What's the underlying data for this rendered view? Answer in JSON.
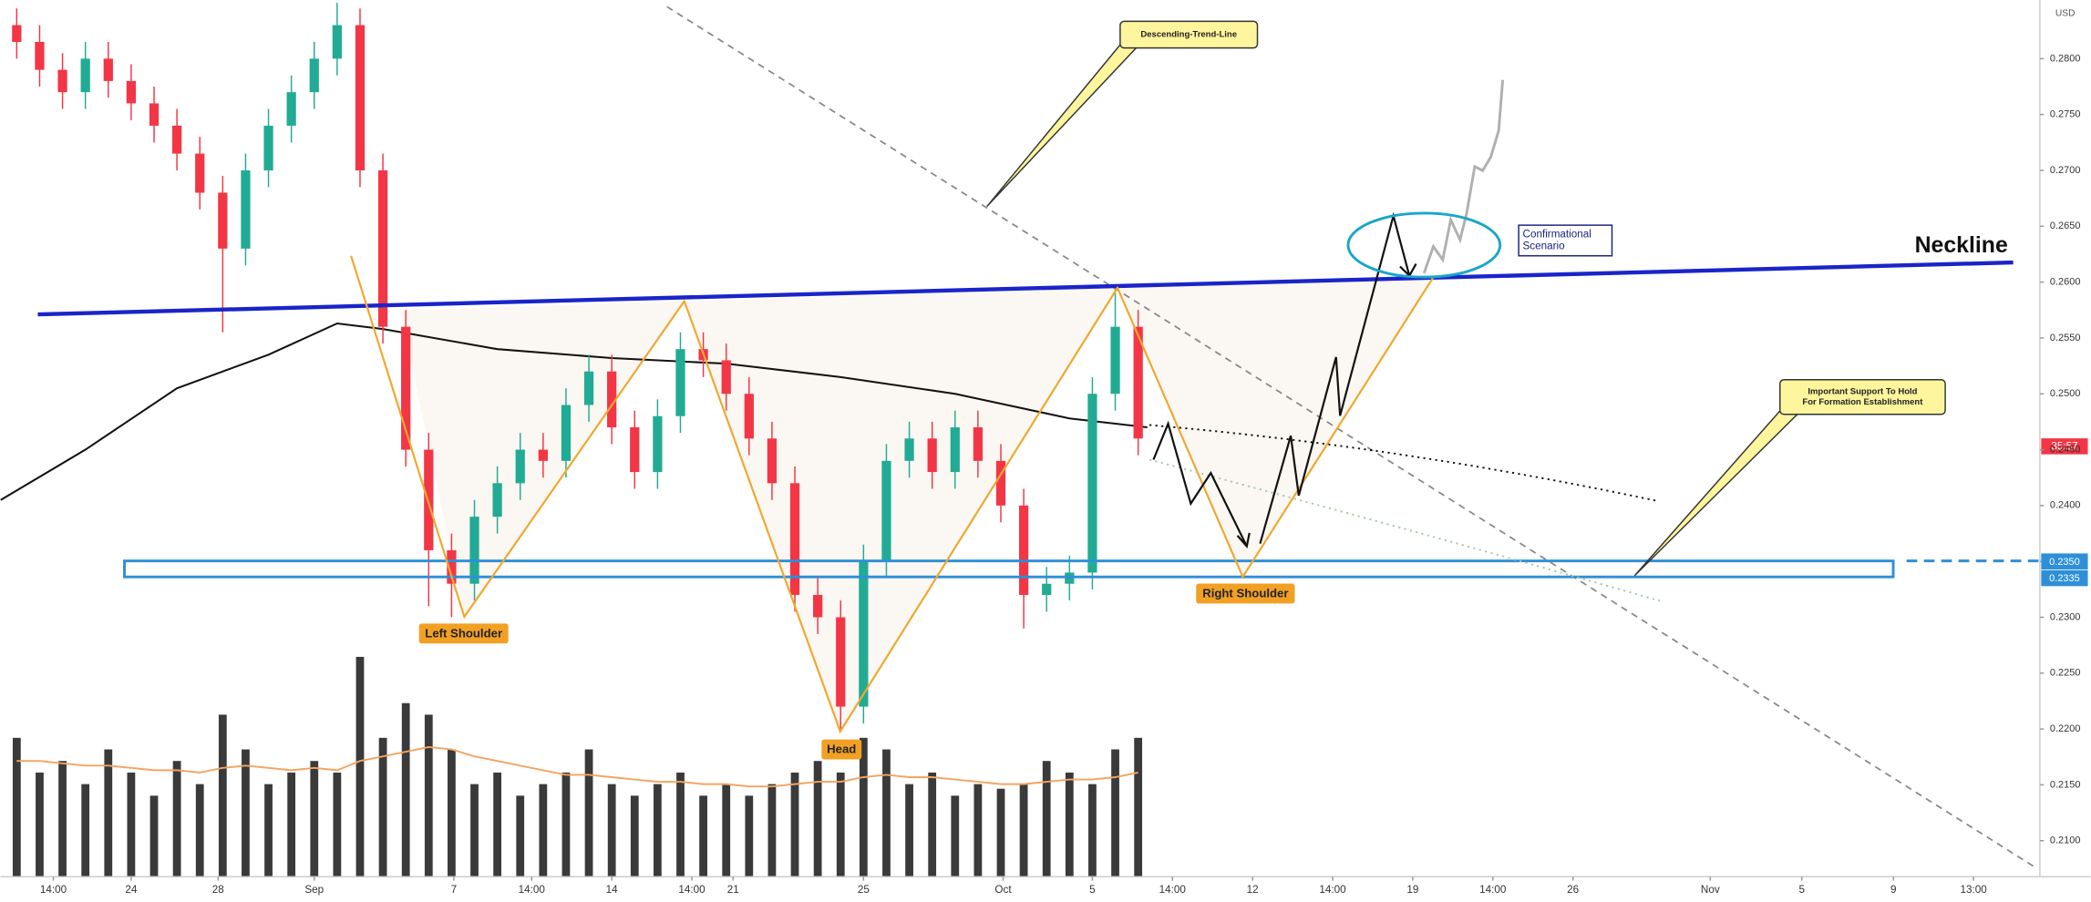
{
  "chart_data": {
    "type": "candlestick",
    "x": [
      19,
      20,
      21,
      22,
      23,
      24,
      25,
      26,
      27,
      28,
      29,
      30,
      31,
      32,
      33,
      34,
      35,
      36,
      37,
      38,
      39,
      40,
      41,
      42,
      43,
      44,
      45,
      46,
      47,
      48,
      49,
      50,
      51,
      52,
      53,
      54,
      55,
      56,
      57,
      58,
      59,
      60,
      61,
      62,
      63,
      64,
      65,
      66,
      67,
      68
    ],
    "open": [
      0.283,
      0.2815,
      0.279,
      0.277,
      0.28,
      0.278,
      0.276,
      0.274,
      0.2715,
      0.268,
      0.263,
      0.27,
      0.274,
      0.277,
      0.28,
      0.283,
      0.27,
      0.256,
      0.245,
      0.236,
      0.233,
      0.239,
      0.242,
      0.245,
      0.244,
      0.249,
      0.252,
      0.247,
      0.243,
      0.248,
      0.254,
      0.253,
      0.25,
      0.246,
      0.242,
      0.232,
      0.23,
      0.222,
      0.235,
      0.244,
      0.246,
      0.243,
      0.247,
      0.244,
      0.24,
      0.232,
      0.233,
      0.234,
      0.25,
      0.256
    ],
    "high": [
      0.2845,
      0.283,
      0.2805,
      0.2815,
      0.2815,
      0.2795,
      0.2775,
      0.2755,
      0.273,
      0.2695,
      0.2715,
      0.2755,
      0.2785,
      0.2815,
      0.285,
      0.2845,
      0.2715,
      0.2575,
      0.2465,
      0.2375,
      0.2405,
      0.2435,
      0.2465,
      0.2465,
      0.2505,
      0.2535,
      0.2535,
      0.2485,
      0.2495,
      0.2555,
      0.2555,
      0.2545,
      0.2515,
      0.2475,
      0.2435,
      0.2335,
      0.2315,
      0.2365,
      0.2455,
      0.2475,
      0.2475,
      0.2485,
      0.2485,
      0.2455,
      0.2415,
      0.2345,
      0.2355,
      0.2515,
      0.2595,
      0.2575
    ],
    "low": [
      0.28,
      0.2775,
      0.2755,
      0.2755,
      0.2765,
      0.2745,
      0.2725,
      0.27,
      0.2665,
      0.2555,
      0.2615,
      0.2685,
      0.2725,
      0.2755,
      0.2785,
      0.2685,
      0.2545,
      0.2435,
      0.231,
      0.23,
      0.2315,
      0.2375,
      0.2405,
      0.2425,
      0.2425,
      0.2475,
      0.2455,
      0.2415,
      0.2415,
      0.2465,
      0.2515,
      0.2485,
      0.2445,
      0.2405,
      0.2305,
      0.2285,
      0.22,
      0.2205,
      0.2335,
      0.2425,
      0.2415,
      0.2415,
      0.2425,
      0.2385,
      0.229,
      0.2305,
      0.2315,
      0.2325,
      0.2485,
      0.2445
    ],
    "close": [
      0.2815,
      0.279,
      0.277,
      0.28,
      0.278,
      0.276,
      0.274,
      0.2715,
      0.268,
      0.263,
      0.27,
      0.274,
      0.277,
      0.28,
      0.283,
      0.27,
      0.256,
      0.245,
      0.236,
      0.233,
      0.239,
      0.242,
      0.245,
      0.244,
      0.249,
      0.252,
      0.247,
      0.243,
      0.248,
      0.254,
      0.253,
      0.25,
      0.246,
      0.242,
      0.232,
      0.23,
      0.222,
      0.235,
      0.244,
      0.246,
      0.243,
      0.247,
      0.244,
      0.24,
      0.232,
      0.233,
      0.234,
      0.25,
      0.256,
      0.246
    ],
    "up_color": "#22ab94",
    "down_color": "#f23645",
    "volume": {
      "values": [
        60,
        45,
        50,
        40,
        55,
        45,
        35,
        50,
        40,
        70,
        55,
        40,
        45,
        50,
        45,
        95,
        60,
        75,
        70,
        55,
        40,
        45,
        35,
        40,
        45,
        55,
        40,
        35,
        40,
        45,
        35,
        40,
        35,
        40,
        45,
        50,
        45,
        60,
        55,
        40,
        45,
        35,
        40,
        38,
        40,
        50,
        45,
        40,
        55,
        60
      ],
      "color": "#3a3a3a",
      "ma": {
        "values": [
          50,
          50,
          49,
          48,
          48,
          47,
          46,
          46,
          45,
          47,
          48,
          47,
          46,
          47,
          46,
          50,
          52,
          54,
          56,
          55,
          52,
          50,
          48,
          46,
          44,
          44,
          43,
          42,
          41,
          41,
          40,
          40,
          39,
          39,
          40,
          41,
          41,
          43,
          44,
          43,
          43,
          42,
          41,
          40,
          40,
          41,
          42,
          42,
          43,
          45
        ],
        "color": "#f4a460"
      }
    },
    "ma": {
      "x": [
        18.3,
        22,
        26,
        30,
        33,
        35,
        40,
        45,
        50,
        55,
        60,
        65,
        68.4
      ],
      "values": [
        0.2405,
        0.245,
        0.2505,
        0.2535,
        0.2563,
        0.2558,
        0.254,
        0.2532,
        0.2527,
        0.2515,
        0.25,
        0.2478,
        0.247
      ],
      "color": "#111111"
    },
    "xlim": [
      18.29,
      107.4
    ],
    "xticks": [
      {
        "value": 20.6,
        "label": "14:00"
      },
      24,
      {
        "value": 27.8,
        "label": "28"
      },
      {
        "value": 32,
        "label": "Sep"
      },
      {
        "value": 38.1,
        "label": "7"
      },
      {
        "value": 41.5,
        "label": "14:00"
      },
      {
        "value": 45,
        "label": "14"
      },
      {
        "value": 48.5,
        "label": "14:00"
      },
      {
        "value": 50.3,
        "label": "21"
      },
      {
        "value": 56,
        "label": "25"
      },
      {
        "value": 62.1,
        "label": "Oct"
      },
      {
        "value": 66,
        "label": "5"
      },
      {
        "value": 69.5,
        "label": "14:00"
      },
      {
        "value": 73,
        "label": "12"
      },
      {
        "value": 76.5,
        "label": "14:00"
      },
      {
        "value": 80,
        "label": "19"
      },
      {
        "value": 83.5,
        "label": "14:00"
      },
      {
        "value": 87,
        "label": "26"
      },
      {
        "value": 93,
        "label": "Nov"
      },
      {
        "value": 97,
        "label": "5"
      },
      {
        "value": 101,
        "label": "9"
      },
      {
        "value": 104.5,
        "label": "13:00"
      }
    ],
    "ylim": [
      0.20678,
      0.28525
    ],
    "yticks": [
      {
        "value": 0.21,
        "label": "0.2100"
      },
      {
        "value": 0.215,
        "label": "0.2150"
      },
      {
        "value": 0.22,
        "label": "0.2200"
      },
      {
        "value": 0.225,
        "label": "0.2250"
      },
      {
        "value": 0.23,
        "label": "0.2300"
      },
      {
        "value": 0.235,
        "label": "0.2350"
      },
      {
        "value": 0.24,
        "label": "0.2400"
      },
      {
        "value": 0.245,
        "label": "0.2450"
      },
      {
        "value": 0.25,
        "label": "0.2500"
      },
      {
        "value": 0.255,
        "label": "0.2550"
      },
      {
        "value": 0.26,
        "label": "0.2600"
      },
      {
        "value": 0.265,
        "label": "0.2650"
      },
      {
        "value": 0.27,
        "label": "0.2700"
      },
      {
        "value": 0.275,
        "label": "0.2750"
      },
      {
        "value": 0.28,
        "label": "0.2800"
      }
    ],
    "y_unit": "USD",
    "price_markers": [
      {
        "value": 0.235,
        "label": "0.2350"
      },
      {
        "value": 0.2335,
        "label": "0.2335"
      }
    ],
    "countdown": "35:57",
    "annotations": {
      "trend_line": "Descending-Trend-Line",
      "neckline": "Neckline",
      "scenario": [
        "Confirmational",
        "Scenario"
      ],
      "support": [
        "Important Support To Hold",
        "For Formation Establishment"
      ],
      "left_shoulder": "Left Shoulder",
      "head": "Head",
      "right_shoulder": "Right Shoulder"
    }
  }
}
